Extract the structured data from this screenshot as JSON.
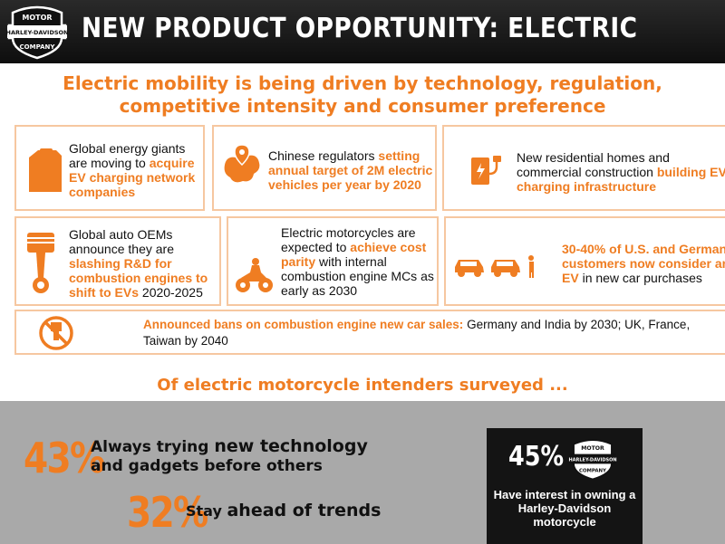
{
  "brand": {
    "logo_top": "MOTOR",
    "logo_mid": "HARLEY-DAVIDSON",
    "logo_bottom": "COMPANY"
  },
  "header": {
    "title": "NEW PRODUCT OPPORTUNITY: ELECTRIC"
  },
  "headline": {
    "line1": "Electric mobility is being driven by technology, regulation,",
    "line2": "competitive intensity and consumer preference"
  },
  "cards": {
    "energy": {
      "pre": "Global energy giants are moving to ",
      "hl": "acquire EV charging network companies",
      "post": "",
      "icon": "fuel-can-icon"
    },
    "china": {
      "pre": "Chinese regulators ",
      "hl": "setting annual target of 2M electric vehicles per year by 2020",
      "post": "",
      "icon": "china-map-pin-icon"
    },
    "homes": {
      "pre": "New residential homes and commercial construction ",
      "hl": "building EV charging infrastructure",
      "post": "",
      "icon": "charging-station-icon"
    },
    "oems": {
      "pre": "Global auto OEMs announce they are ",
      "hl": "slashing R&D for combustion engines to shift to EVs",
      "post": " 2020-2025",
      "icon": "piston-icon"
    },
    "motorcycles": {
      "pre": "Electric motorcycles are expected to ",
      "hl": "achieve cost parity",
      "post": " with internal combustion engine MCs as early as 2030",
      "icon": "motorcycle-rider-icon"
    },
    "customers": {
      "pre": "",
      "hl": "30-40% of U.S. and German customers now consider an EV",
      "post": " in new car purchases",
      "icon": "cars-person-icon"
    }
  },
  "banner": {
    "hl": "Announced bans on combustion engine new car sales:",
    "post": " Germany and India by 2030; UK, France, Taiwan by 2040",
    "icon": "no-combustion-icon"
  },
  "survey": {
    "heading": "Of electric motorcycle intenders surveyed ...",
    "stat1": {
      "pct": "43%",
      "line1_a": "Always trying ",
      "line1_b": "new technology",
      "line2": "and gadgets before others"
    },
    "stat2": {
      "pct": "32%",
      "a": "Stay ",
      "b": "ahead of trends"
    },
    "stat3": {
      "pct": "45%",
      "caption": "Have interest in owning a Harley-Davidson motorcycle"
    }
  },
  "colors": {
    "accent": "#ef7d22",
    "card_border": "#f6c7a0",
    "panel": "#a9a9a9",
    "dark_box": "#141414"
  }
}
